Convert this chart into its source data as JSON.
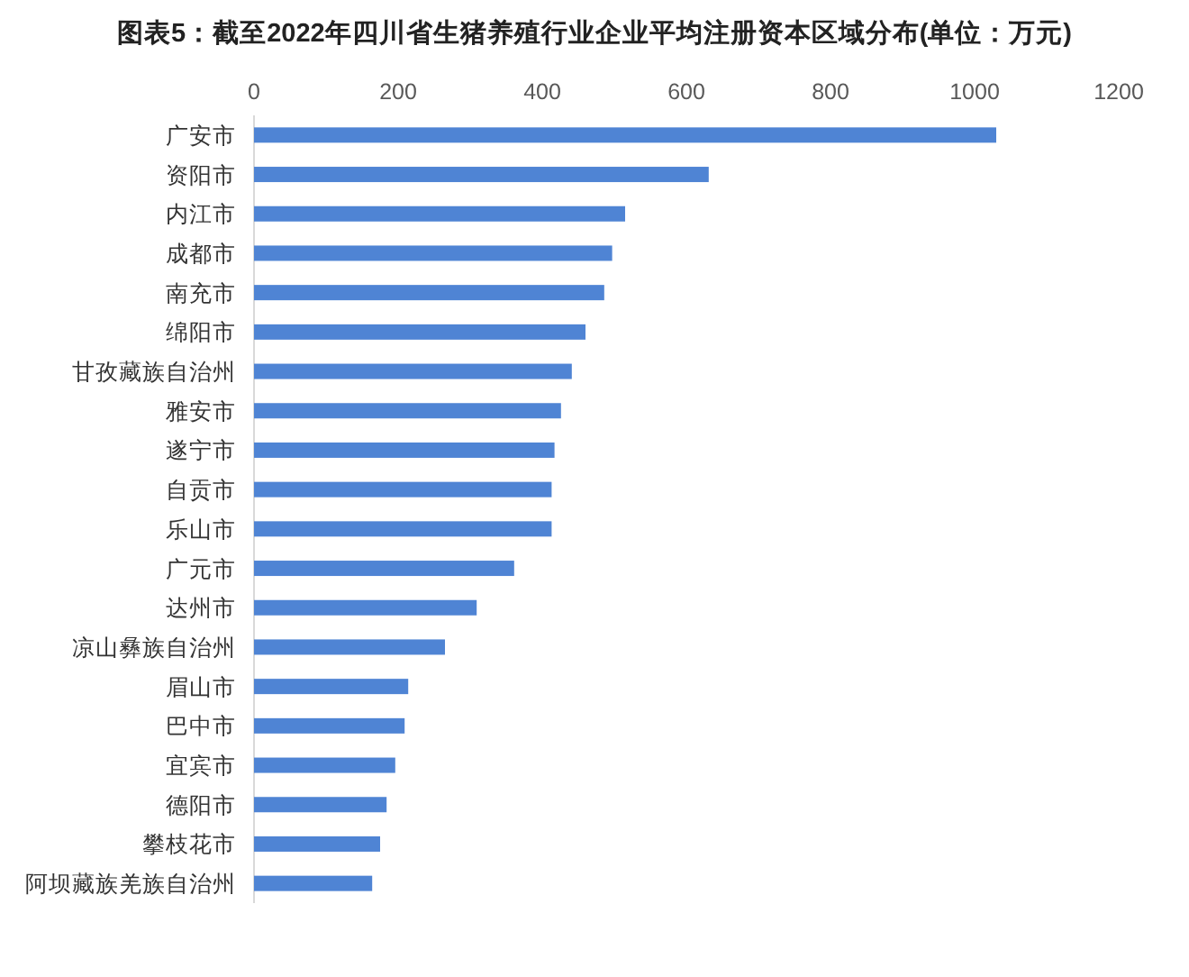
{
  "chart_data": {
    "type": "bar",
    "orientation": "horizontal",
    "title": "图表5：截至2022年四川省生猪养殖行业企业平均注册资本区域分布(单位：万元)",
    "categories": [
      "广安市",
      "资阳市",
      "内江市",
      "成都市",
      "南充市",
      "绵阳市",
      "甘孜藏族自治州",
      "雅安市",
      "遂宁市",
      "自贡市",
      "乐山市",
      "广元市",
      "达州市",
      "凉山彝族自治州",
      "眉山市",
      "巴中市",
      "宜宾市",
      "德阳市",
      "攀枝花市",
      "阿坝藏族羌族自治州"
    ],
    "values": [
      1030,
      631,
      515,
      497,
      486,
      460,
      441,
      426,
      417,
      413,
      413,
      361,
      309,
      265,
      214,
      209,
      196,
      184,
      175,
      164
    ],
    "color": "#4f84d4",
    "xlim": [
      0,
      1200
    ],
    "xticks": [
      0,
      200,
      400,
      600,
      800,
      1000,
      1200
    ],
    "grid": false
  }
}
